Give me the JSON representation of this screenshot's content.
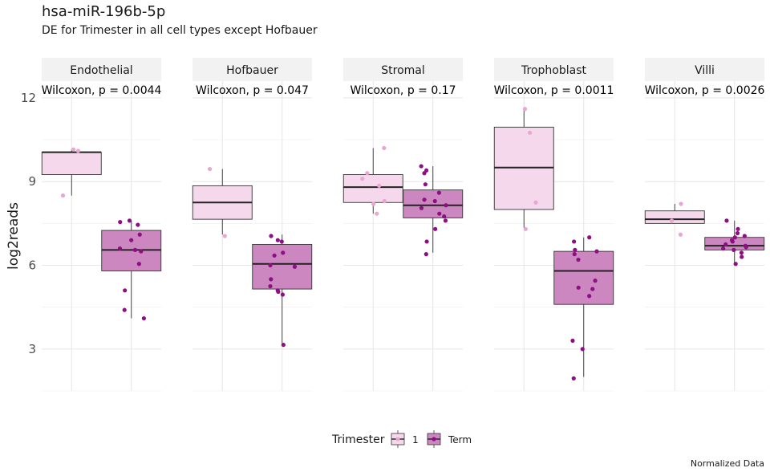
{
  "chart_data": {
    "type": "boxplot",
    "title": "hsa-miR-196b-5p",
    "subtitle": "DE for Trimester in all cell types except Hofbauer",
    "caption": "Normalized Data",
    "ylabel": "log2reads",
    "xlabel": "",
    "ylim": [
      1.5,
      12.6
    ],
    "yticks": [
      3,
      6,
      9,
      12
    ],
    "grid": true,
    "legend": {
      "title": "Trimester",
      "position": "bottom",
      "entries": [
        {
          "label": "1",
          "fill": "#f5d8ec",
          "point": "#e8a6d3"
        },
        {
          "label": "Term",
          "fill": "#cc87c1",
          "point": "#8e0e83"
        }
      ]
    },
    "panels": [
      {
        "name": "Endothelial",
        "test": "Wilcoxon, p = 0.0044",
        "groups": [
          {
            "group": "1",
            "box": {
              "min": 8.5,
              "q1": 9.25,
              "median": 10.05,
              "q3": 10.05,
              "max": 10.15
            },
            "points": [
              8.5,
              10.1,
              10.15
            ]
          },
          {
            "group": "Term",
            "box": {
              "min": 4.1,
              "q1": 5.8,
              "median": 6.55,
              "q3": 7.25,
              "max": 7.6
            },
            "points": [
              4.1,
              4.4,
              5.1,
              6.05,
              6.5,
              6.55,
              6.6,
              6.9,
              7.1,
              7.45,
              7.55,
              7.6
            ]
          }
        ]
      },
      {
        "name": "Hofbauer",
        "test": "Wilcoxon, p = 0.047",
        "groups": [
          {
            "group": "1",
            "box": {
              "min": 7.1,
              "q1": 7.65,
              "median": 8.25,
              "q3": 8.85,
              "max": 9.45
            },
            "points": [
              7.05,
              9.45
            ]
          },
          {
            "group": "Term",
            "box": {
              "min": 3.2,
              "q1": 5.15,
              "median": 6.05,
              "q3": 6.75,
              "max": 7.1
            },
            "points": [
              3.15,
              4.95,
              5.05,
              5.1,
              5.25,
              5.5,
              5.95,
              6.0,
              6.35,
              6.45,
              6.85,
              6.9,
              7.05
            ]
          }
        ]
      },
      {
        "name": "Stromal",
        "test": "Wilcoxon, p = 0.17",
        "groups": [
          {
            "group": "1",
            "box": {
              "min": 7.85,
              "q1": 8.25,
              "median": 8.8,
              "q3": 9.25,
              "max": 10.2
            },
            "points": [
              7.85,
              8.2,
              8.3,
              8.85,
              9.1,
              9.3,
              10.2
            ]
          },
          {
            "group": "Term",
            "box": {
              "min": 6.45,
              "q1": 7.7,
              "median": 8.15,
              "q3": 8.7,
              "max": 9.55
            },
            "points": [
              6.4,
              6.85,
              7.3,
              7.6,
              7.75,
              7.85,
              8.05,
              8.15,
              8.3,
              8.35,
              8.6,
              8.9,
              9.3,
              9.4,
              9.55
            ]
          }
        ]
      },
      {
        "name": "Trophoblast",
        "test": "Wilcoxon, p = 0.0011",
        "groups": [
          {
            "group": "1",
            "box": {
              "min": 7.35,
              "q1": 8.0,
              "median": 9.5,
              "q3": 10.95,
              "max": 11.6
            },
            "points": [
              7.3,
              8.25,
              10.75,
              11.6
            ]
          },
          {
            "group": "Term",
            "box": {
              "min": 2.0,
              "q1": 4.6,
              "median": 5.8,
              "q3": 6.5,
              "max": 7.0
            },
            "points": [
              1.95,
              3.0,
              3.3,
              4.9,
              5.15,
              5.2,
              5.45,
              6.2,
              6.4,
              6.5,
              6.55,
              6.85,
              7.0
            ]
          }
        ]
      },
      {
        "name": "Villi",
        "test": "Wilcoxon, p = 0.0026",
        "groups": [
          {
            "group": "1",
            "box": {
              "min": 7.5,
              "q1": 7.5,
              "median": 7.65,
              "q3": 7.95,
              "max": 8.2
            },
            "points": [
              7.1,
              7.6,
              8.2
            ]
          },
          {
            "group": "Term",
            "box": {
              "min": 6.1,
              "q1": 6.55,
              "median": 6.7,
              "q3": 7.0,
              "max": 7.6
            },
            "points": [
              6.05,
              6.3,
              6.45,
              6.55,
              6.6,
              6.65,
              6.7,
              6.75,
              6.85,
              6.9,
              7.0,
              7.05,
              7.15,
              7.3,
              7.6
            ]
          }
        ]
      }
    ]
  }
}
